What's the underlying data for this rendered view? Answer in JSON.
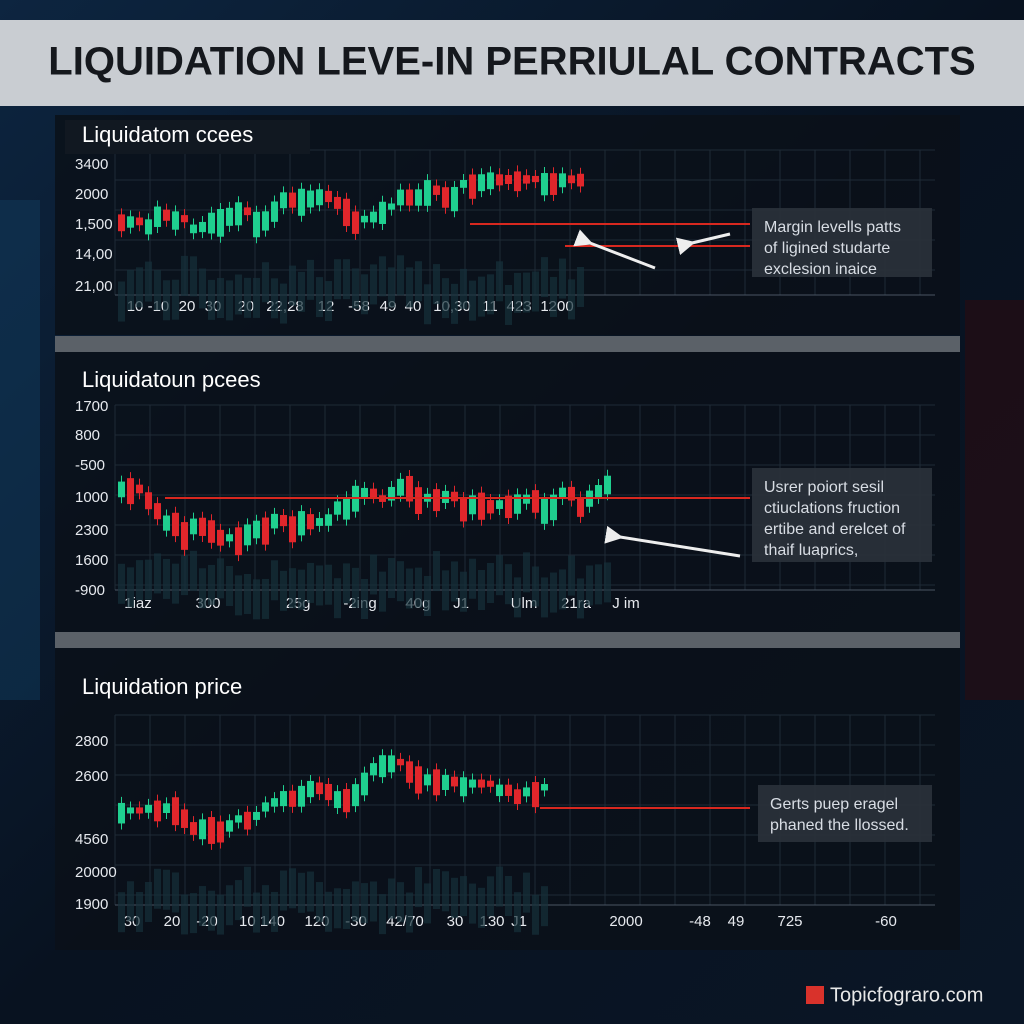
{
  "title": "LIQUIDATION LEVE-IN PERRIULAL CONTRACTS",
  "panels": [
    {
      "heading": "Liquidatom ccees",
      "y_labels": [
        "3400",
        "2000",
        "1,500",
        "14,00",
        "21,00"
      ],
      "x_labels": [
        "10 -10",
        "20",
        "30",
        "20",
        "22,28",
        "12",
        "-58",
        "49",
        "40",
        "10,30",
        "11",
        "423",
        "1200"
      ],
      "note": [
        "Margin levells patts",
        "of ligined studarte",
        "exclesion inaice"
      ]
    },
    {
      "heading": "Liquidatoun pcees",
      "y_labels": [
        "1700",
        "800",
        "-500",
        "1000",
        "2300",
        "1600",
        "-900"
      ],
      "x_labels": [
        "1iaz",
        "300",
        "25g",
        "-2ing",
        "40g",
        "J1",
        "Ulm",
        "21ra",
        "J im"
      ],
      "note": [
        "Usrer poiort sesil",
        "ctiuclations fruction",
        "ertibe and erelcet of",
        "thaif luaprics,"
      ]
    },
    {
      "heading": "Liquidation price",
      "y_labels": [
        "2800",
        "2600",
        "4560",
        "20000",
        "1900"
      ],
      "x_labels": [
        "30",
        "20",
        "-20",
        "10 140",
        "120",
        "-30",
        "42/70",
        "30",
        "130",
        "J1",
        "2000",
        "-48",
        "49",
        "725",
        "-60"
      ],
      "note": [
        "Gerts puep eragel",
        "phaned the llossed."
      ]
    }
  ],
  "watermark": "Topicfograro.com"
}
